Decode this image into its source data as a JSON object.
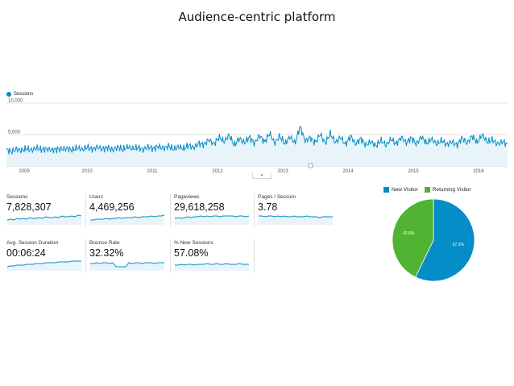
{
  "title": "Audience-centric platform",
  "colors": {
    "primary": "#058dc7",
    "secondary": "#50b432",
    "area": "#e8f4fa"
  },
  "chart_data": [
    {
      "type": "area",
      "legend": "Sessions",
      "y_ticks": [
        "10,000",
        "5,000"
      ],
      "ylim": [
        0,
        10000
      ],
      "x_ticks": [
        "2009",
        "2010",
        "2011",
        "2012",
        "2013",
        "2014",
        "2015",
        "2016"
      ],
      "series": [
        {
          "name": "Sessions",
          "values": [
            2600,
            2300,
            2700,
            2450,
            2800,
            2500,
            2900,
            2600,
            2750,
            2550,
            2650,
            2700,
            2800,
            2550,
            2900,
            2600,
            3000,
            2650,
            3050,
            2700,
            2950,
            2550,
            3000,
            2650,
            3050,
            2750,
            2950,
            2600,
            3100,
            2700,
            3150,
            2800,
            3200,
            2650,
            3100,
            2750,
            3300,
            2900,
            3600,
            3400,
            4200,
            3500,
            4600,
            3900,
            4900,
            3300,
            4400,
            3700,
            4600,
            3600,
            4900,
            3800,
            5200,
            3600,
            4800,
            3500,
            4700,
            3600,
            6300,
            4000,
            4500,
            3700,
            5100,
            3600,
            5200,
            3700,
            4600,
            3400,
            4800,
            3500,
            4400,
            3300,
            3900,
            3200,
            4100,
            3300,
            4300,
            3500,
            4600,
            3700,
            4500,
            3500,
            4700,
            3600,
            4300,
            3500,
            4100,
            3400,
            3900,
            3300,
            4500,
            3600,
            4800,
            3700,
            5000,
            3800,
            4200,
            3500,
            3900,
            3400
          ]
        }
      ]
    },
    {
      "type": "pie",
      "legend_placement": "top",
      "slices": [
        {
          "label": "New Visitor",
          "value": 57.2,
          "text": "57.2%"
        },
        {
          "label": "Returning Visitor",
          "value": 42.8,
          "text": "42.8%"
        }
      ]
    }
  ],
  "metrics": [
    {
      "label": "Sessions",
      "value": "7,828,307"
    },
    {
      "label": "Users",
      "value": "4,469,256"
    },
    {
      "label": "Pageviews",
      "value": "29,618,258"
    },
    {
      "label": "Pages / Session",
      "value": "3.78"
    },
    {
      "label": "Avg. Session Duration",
      "value": "00:06:24"
    },
    {
      "label": "Bounce Rate",
      "value": "32.32%"
    },
    {
      "label": "% New Sessions",
      "value": "57.08%"
    }
  ],
  "sparklines": [
    [
      4,
      5,
      4,
      6,
      5,
      6,
      5,
      7,
      6,
      6,
      7,
      6,
      8,
      7,
      7,
      8,
      7,
      9,
      8,
      8,
      9,
      8,
      10,
      9
    ],
    [
      4,
      4,
      5,
      5,
      5,
      6,
      5,
      6,
      6,
      7,
      6,
      7,
      7,
      7,
      8,
      7,
      8,
      8,
      8,
      9,
      8,
      9,
      9,
      10
    ],
    [
      6,
      7,
      6,
      7,
      8,
      7,
      8,
      8,
      9,
      8,
      9,
      8,
      9,
      9,
      8,
      9,
      9,
      9,
      9,
      8,
      9,
      9,
      8,
      9
    ],
    [
      9,
      9,
      8,
      9,
      9,
      8,
      9,
      8,
      9,
      8,
      8,
      9,
      8,
      8,
      8,
      9,
      8,
      8,
      8,
      7,
      8,
      8,
      8,
      8
    ],
    [
      3,
      4,
      4,
      5,
      5,
      5,
      6,
      6,
      6,
      7,
      7,
      7,
      8,
      8,
      8,
      8,
      9,
      9,
      9,
      9,
      10,
      10,
      10,
      10
    ],
    [
      7,
      7,
      8,
      7,
      8,
      8,
      7,
      8,
      3,
      3,
      3,
      3,
      8,
      7,
      8,
      8,
      7,
      8,
      8,
      8,
      7,
      8,
      8,
      8
    ],
    [
      5,
      5,
      6,
      5,
      6,
      6,
      5,
      6,
      6,
      6,
      7,
      6,
      6,
      7,
      6,
      6,
      7,
      6,
      6,
      6,
      7,
      6,
      6,
      6
    ]
  ]
}
